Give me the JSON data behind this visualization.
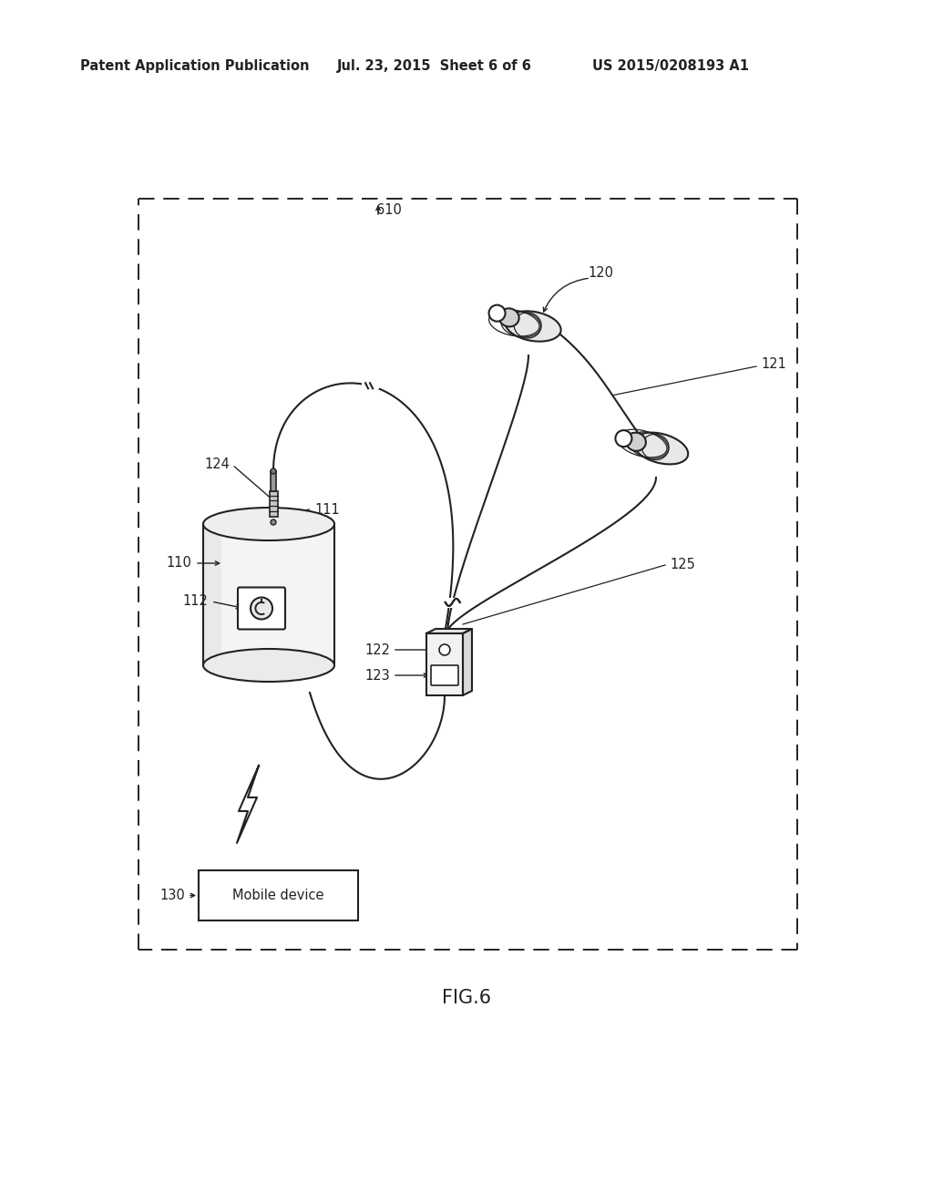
{
  "title": "FIG.6",
  "header_left": "Patent Application Publication",
  "header_mid": "Jul. 23, 2015  Sheet 6 of 6",
  "header_right": "US 2015/0208193 A1",
  "bg_color": "#ffffff",
  "line_color": "#222222",
  "label_610": "610",
  "label_120": "120",
  "label_121": "121",
  "label_110": "110",
  "label_111": "111",
  "label_112": "112",
  "label_122": "122",
  "label_123": "123",
  "label_124": "124",
  "label_125": "125",
  "label_130": "130",
  "mobile_device_text": "Mobile device"
}
